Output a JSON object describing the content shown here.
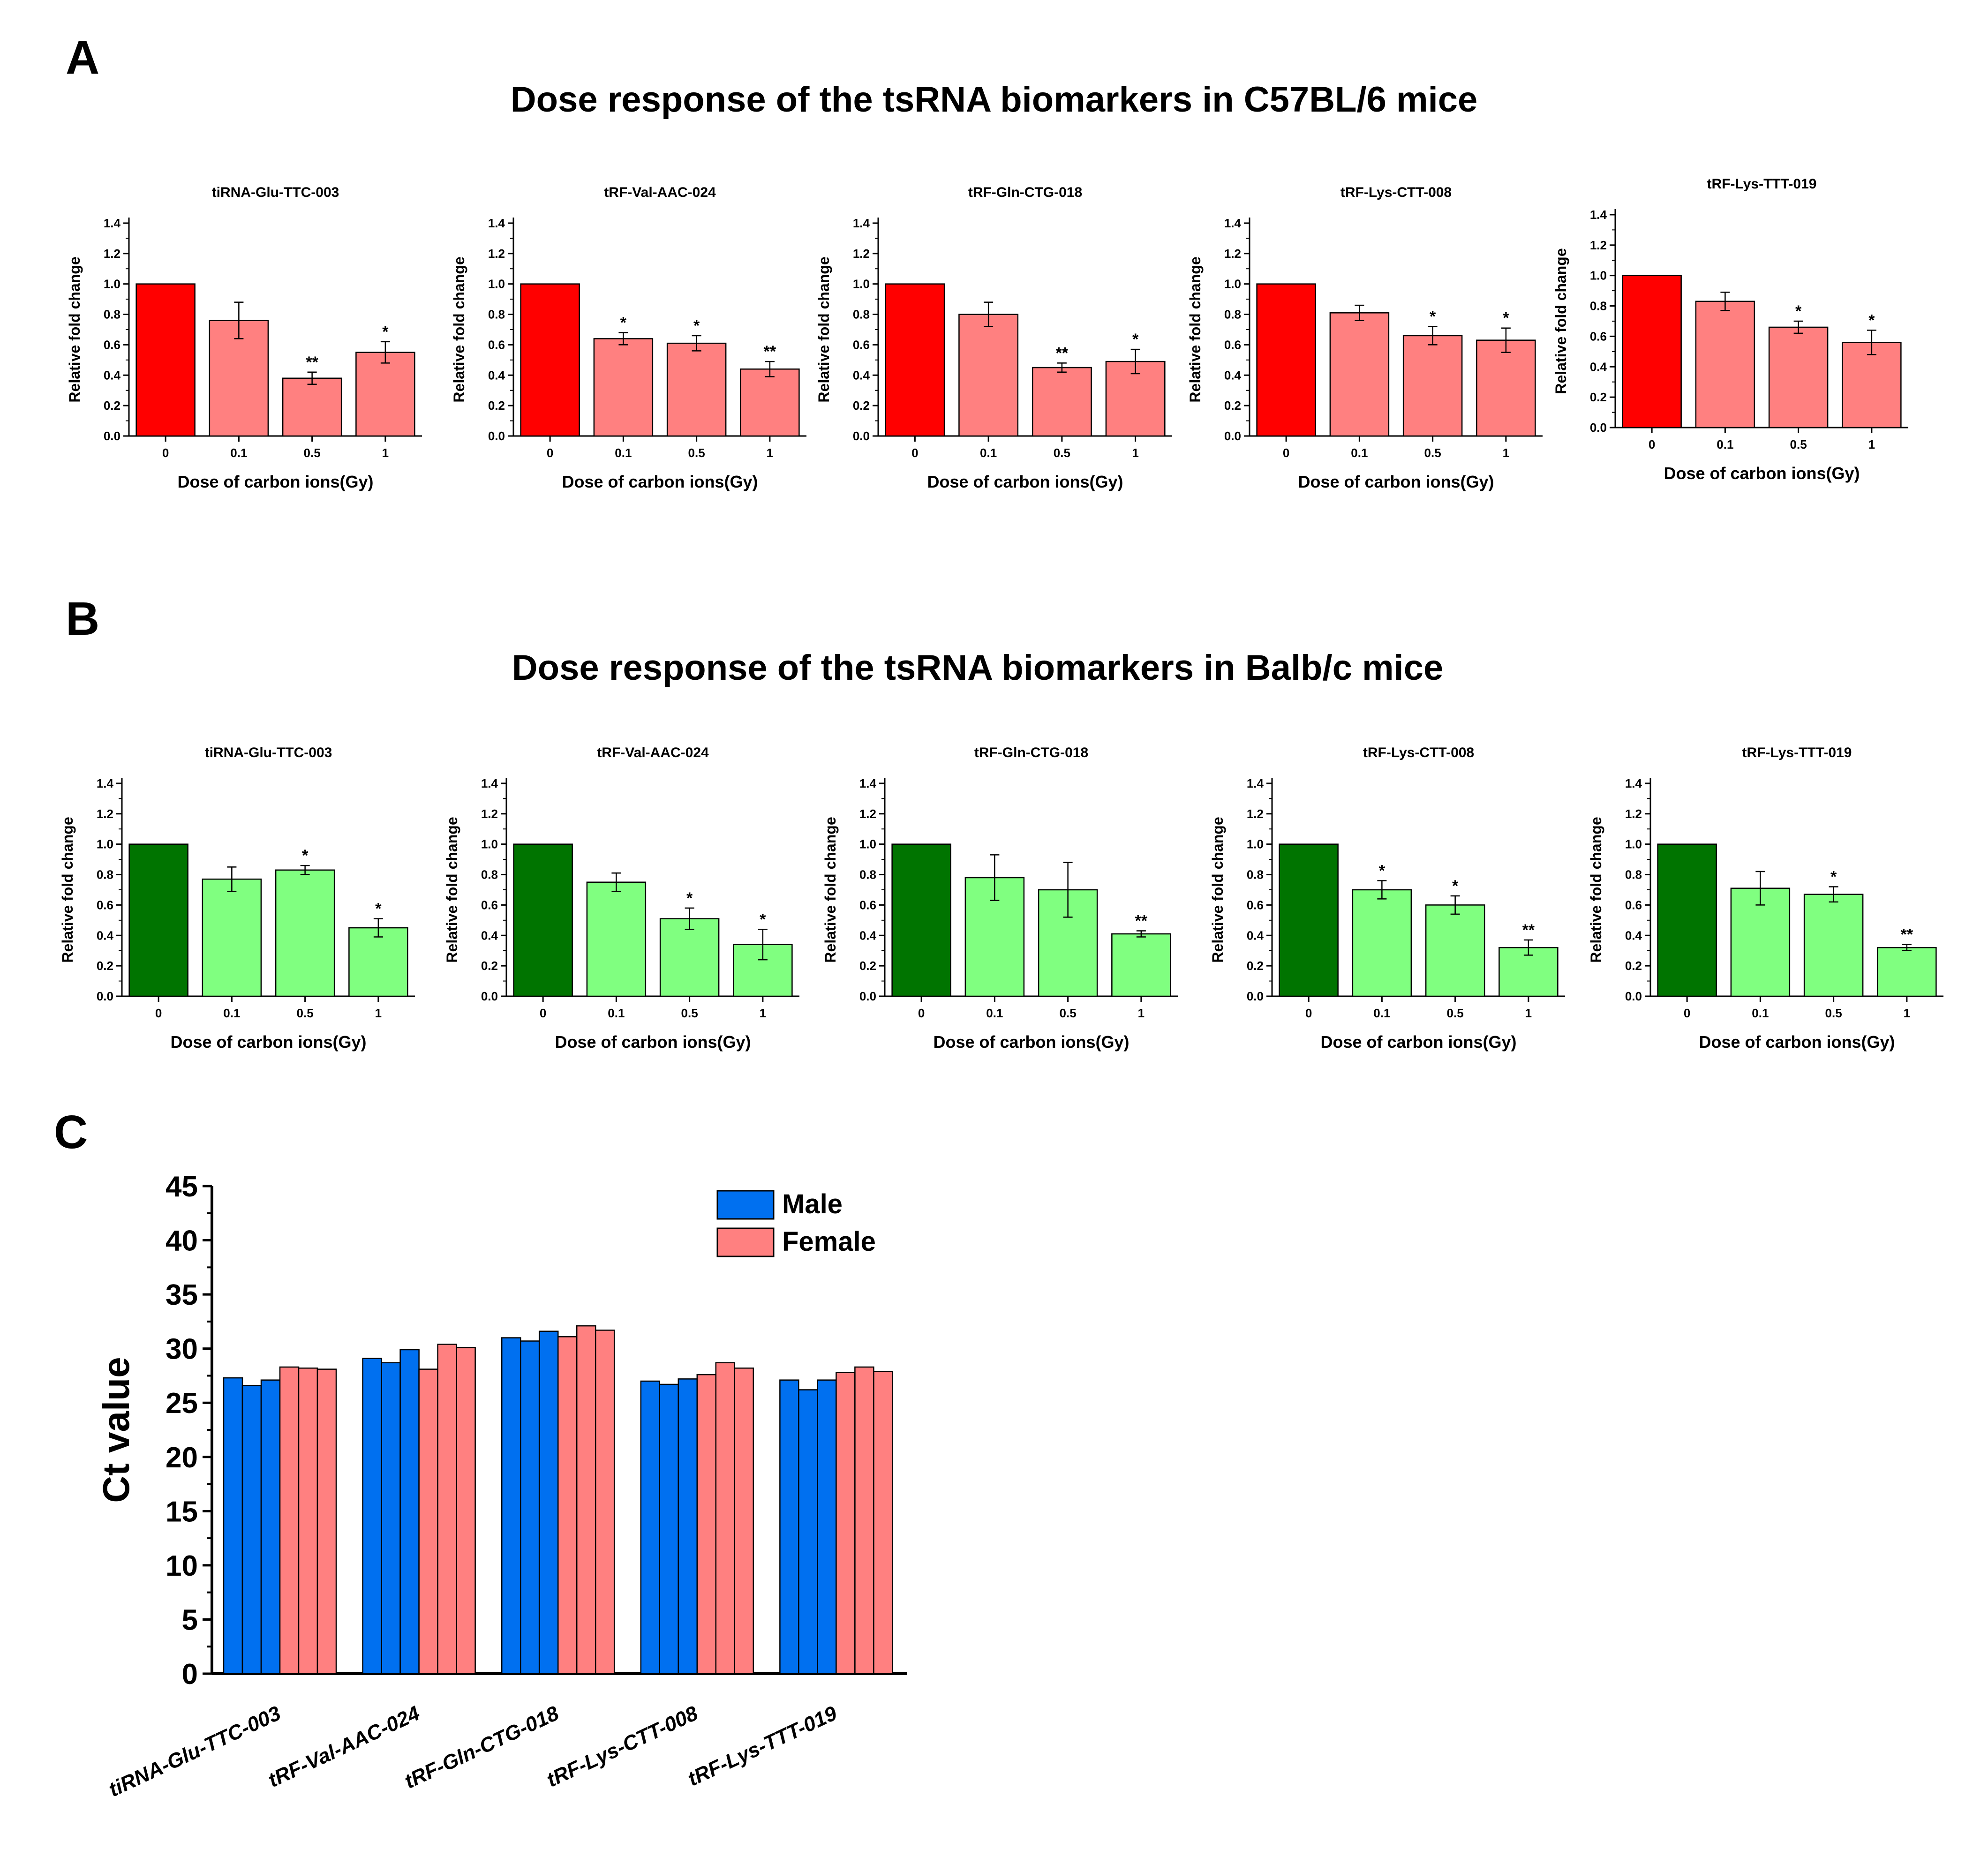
{
  "panels": {
    "A": {
      "label": "A",
      "title": "Dose response of the tsRNA biomarkers in C57BL/6 mice",
      "control_color": "#ff0000",
      "bar_color": "#ff8080"
    },
    "B": {
      "label": "B",
      "title": "Dose response of the tsRNA biomarkers in Balb/c mice",
      "control_color": "#007400",
      "bar_color": "#80ff80"
    },
    "C": {
      "label": "C"
    }
  },
  "chart_data": [
    {
      "id": "A1",
      "panel": "A",
      "type": "bar",
      "title": "tiRNA-Glu-TTC-003",
      "xlabel": "Dose of carbon ions(Gy)",
      "ylabel": "Relative fold change",
      "categories": [
        "0",
        "0.1",
        "0.5",
        "1"
      ],
      "values": [
        1.0,
        0.76,
        0.38,
        0.55
      ],
      "errors": [
        0,
        0.12,
        0.04,
        0.07
      ],
      "significance": [
        "",
        "",
        "**",
        "*"
      ],
      "ylim": [
        0,
        1.4
      ],
      "yticks": [
        "0.0",
        "0.2",
        "0.4",
        "0.6",
        "0.8",
        "1.0",
        "1.2",
        "1.4"
      ]
    },
    {
      "id": "A2",
      "panel": "A",
      "type": "bar",
      "title": "tRF-Val-AAC-024",
      "xlabel": "Dose of carbon ions(Gy)",
      "ylabel": "Relative fold change",
      "categories": [
        "0",
        "0.1",
        "0.5",
        "1"
      ],
      "values": [
        1.0,
        0.64,
        0.61,
        0.44
      ],
      "errors": [
        0,
        0.04,
        0.05,
        0.05
      ],
      "significance": [
        "",
        "*",
        "*",
        "**"
      ],
      "ylim": [
        0,
        1.4
      ],
      "yticks": [
        "0.0",
        "0.2",
        "0.4",
        "0.6",
        "0.8",
        "1.0",
        "1.2",
        "1.4"
      ]
    },
    {
      "id": "A3",
      "panel": "A",
      "type": "bar",
      "title": "tRF-Gln-CTG-018",
      "xlabel": "Dose of carbon ions(Gy)",
      "ylabel": "Relative fold change",
      "categories": [
        "0",
        "0.1",
        "0.5",
        "1"
      ],
      "values": [
        1.0,
        0.8,
        0.45,
        0.49
      ],
      "errors": [
        0,
        0.08,
        0.03,
        0.08
      ],
      "significance": [
        "",
        "",
        "**",
        "*"
      ],
      "ylim": [
        0,
        1.4
      ],
      "yticks": [
        "0.0",
        "0.2",
        "0.4",
        "0.6",
        "0.8",
        "1.0",
        "1.2",
        "1.4"
      ]
    },
    {
      "id": "A4",
      "panel": "A",
      "type": "bar",
      "title": "tRF-Lys-CTT-008",
      "xlabel": "Dose of carbon ions(Gy)",
      "ylabel": "Relative fold change",
      "categories": [
        "0",
        "0.1",
        "0.5",
        "1"
      ],
      "values": [
        1.0,
        0.81,
        0.66,
        0.63
      ],
      "errors": [
        0,
        0.05,
        0.06,
        0.08
      ],
      "significance": [
        "",
        "",
        "*",
        "*"
      ],
      "ylim": [
        0,
        1.4
      ],
      "yticks": [
        "0.0",
        "0.2",
        "0.4",
        "0.6",
        "0.8",
        "1.0",
        "1.2",
        "1.4"
      ]
    },
    {
      "id": "A5",
      "panel": "A",
      "type": "bar",
      "title": "tRF-Lys-TTT-019",
      "xlabel": "Dose of carbon ions(Gy)",
      "ylabel": "Relative fold change",
      "categories": [
        "0",
        "0.1",
        "0.5",
        "1"
      ],
      "values": [
        1.0,
        0.83,
        0.66,
        0.56
      ],
      "errors": [
        0,
        0.06,
        0.04,
        0.08
      ],
      "significance": [
        "",
        "",
        "*",
        "*"
      ],
      "ylim": [
        0,
        1.4
      ],
      "yticks": [
        "0.0",
        "0.2",
        "0.4",
        "0.6",
        "0.8",
        "1.0",
        "1.2",
        "1.4"
      ]
    },
    {
      "id": "B1",
      "panel": "B",
      "type": "bar",
      "title": "tiRNA-Glu-TTC-003",
      "xlabel": "Dose of carbon ions(Gy)",
      "ylabel": "Relative fold change",
      "categories": [
        "0",
        "0.1",
        "0.5",
        "1"
      ],
      "values": [
        1.0,
        0.77,
        0.83,
        0.45
      ],
      "errors": [
        0,
        0.08,
        0.03,
        0.06
      ],
      "significance": [
        "",
        "",
        "*",
        "*"
      ],
      "ylim": [
        0,
        1.4
      ],
      "yticks": [
        "0.0",
        "0.2",
        "0.4",
        "0.6",
        "0.8",
        "1.0",
        "1.2",
        "1.4"
      ]
    },
    {
      "id": "B2",
      "panel": "B",
      "type": "bar",
      "title": "tRF-Val-AAC-024",
      "xlabel": "Dose of carbon ions(Gy)",
      "ylabel": "Relative fold change",
      "categories": [
        "0",
        "0.1",
        "0.5",
        "1"
      ],
      "values": [
        1.0,
        0.75,
        0.51,
        0.34
      ],
      "errors": [
        0,
        0.06,
        0.07,
        0.1
      ],
      "significance": [
        "",
        "",
        "*",
        "*"
      ],
      "ylim": [
        0,
        1.4
      ],
      "yticks": [
        "0.0",
        "0.2",
        "0.4",
        "0.6",
        "0.8",
        "1.0",
        "1.2",
        "1.4"
      ]
    },
    {
      "id": "B3",
      "panel": "B",
      "type": "bar",
      "title": "tRF-Gln-CTG-018",
      "xlabel": "Dose of carbon ions(Gy)",
      "ylabel": "Relative fold change",
      "categories": [
        "0",
        "0.1",
        "0.5",
        "1"
      ],
      "values": [
        1.0,
        0.78,
        0.7,
        0.41
      ],
      "errors": [
        0,
        0.15,
        0.18,
        0.02
      ],
      "significance": [
        "",
        "",
        "",
        "**"
      ],
      "ylim": [
        0,
        1.4
      ],
      "yticks": [
        "0.0",
        "0.2",
        "0.4",
        "0.6",
        "0.8",
        "1.0",
        "1.2",
        "1.4"
      ]
    },
    {
      "id": "B4",
      "panel": "B",
      "type": "bar",
      "title": "tRF-Lys-CTT-008",
      "xlabel": "Dose of carbon ions(Gy)",
      "ylabel": "Relative fold change",
      "categories": [
        "0",
        "0.1",
        "0.5",
        "1"
      ],
      "values": [
        1.0,
        0.7,
        0.6,
        0.32
      ],
      "errors": [
        0,
        0.06,
        0.06,
        0.05
      ],
      "significance": [
        "",
        "*",
        "*",
        "**"
      ],
      "ylim": [
        0,
        1.4
      ],
      "yticks": [
        "0.0",
        "0.2",
        "0.4",
        "0.6",
        "0.8",
        "1.0",
        "1.2",
        "1.4"
      ]
    },
    {
      "id": "B5",
      "panel": "B",
      "type": "bar",
      "title": "tRF-Lys-TTT-019",
      "xlabel": "Dose of carbon ions(Gy)",
      "ylabel": "Relative fold change",
      "categories": [
        "0",
        "0.1",
        "0.5",
        "1"
      ],
      "values": [
        1.0,
        0.71,
        0.67,
        0.32
      ],
      "errors": [
        0,
        0.11,
        0.05,
        0.02
      ],
      "significance": [
        "",
        "",
        "*",
        "**"
      ],
      "ylim": [
        0,
        1.4
      ],
      "yticks": [
        "0.0",
        "0.2",
        "0.4",
        "0.6",
        "0.8",
        "1.0",
        "1.2",
        "1.4"
      ]
    },
    {
      "id": "C",
      "panel": "C",
      "type": "bar",
      "title": "",
      "xlabel": "",
      "ylabel": "Ct value",
      "categories": [
        "tiRNA-Glu-TTC-003",
        "tRF-Val-AAC-024",
        "tRF-Gln-CTG-018",
        "tRF-Lys-CTT-008",
        "tRF-Lys-TTT-019"
      ],
      "series": [
        {
          "name": "Male",
          "color": "#0070f0",
          "values": [
            [
              27.3,
              26.6,
              27.1
            ],
            [
              29.1,
              28.7,
              29.9
            ],
            [
              31.0,
              30.7,
              31.6
            ],
            [
              27.0,
              26.7,
              27.2
            ],
            [
              27.1,
              26.2,
              27.1
            ]
          ]
        },
        {
          "name": "Female",
          "color": "#ff8080",
          "values": [
            [
              28.3,
              28.2,
              28.1
            ],
            [
              28.1,
              30.4,
              30.1
            ],
            [
              31.1,
              32.1,
              31.7
            ],
            [
              27.6,
              28.7,
              28.2
            ],
            [
              27.8,
              28.3,
              27.9
            ]
          ]
        }
      ],
      "ylim": [
        0,
        45
      ],
      "yticks": [
        "0",
        "5",
        "10",
        "15",
        "20",
        "25",
        "30",
        "35",
        "40",
        "45"
      ],
      "legend_position": "top-center"
    }
  ]
}
